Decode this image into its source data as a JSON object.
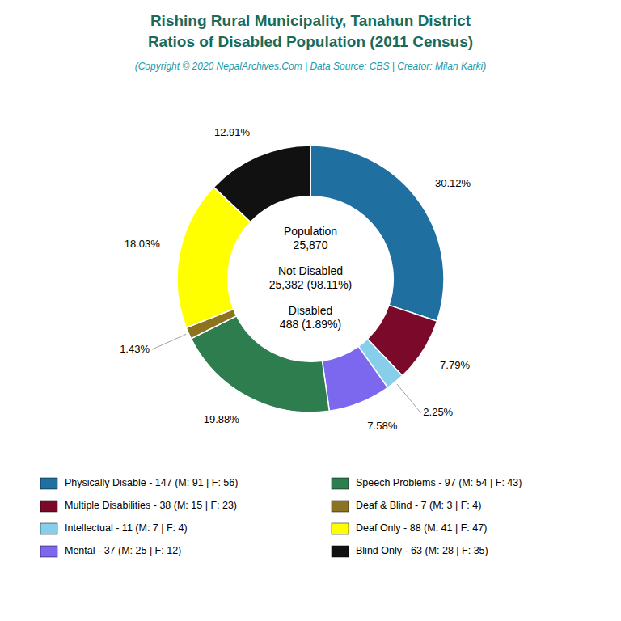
{
  "chart_data": {
    "type": "pie",
    "title": "Rishing Rural Municipality, Tanahun District\nRatios of Disabled Population (2011 Census)",
    "subtitle": "(Copyright © 2020 NepalArchives.Com | Data Source: CBS | Creator: Milan Karki)",
    "categories": [
      "Physically Disable - 147 (M: 91 | F: 56)",
      "Multiple Disabilities - 38 (M: 15 | F: 23)",
      "Intellectual - 11 (M: 7 | F: 4)",
      "Mental - 37 (M: 25 | F: 12)",
      "Speech Problems - 97 (M: 54 | F: 43)",
      "Deaf & Blind - 7 (M: 3 | F: 4)",
      "Deaf Only - 88 (M: 41 | F: 47)",
      "Blind Only - 63 (M: 28 | F: 35)"
    ],
    "values": [
      30.12,
      7.79,
      2.25,
      7.58,
      19.88,
      1.43,
      18.03,
      12.91
    ],
    "value_labels": [
      "30.12%",
      "7.79%",
      "2.25%",
      "7.58%",
      "19.88%",
      "1.43%",
      "18.03%",
      "12.91%"
    ],
    "colors": [
      "#1f6fa0",
      "#7b0a2a",
      "#87ceeb",
      "#7b68ee",
      "#2e7d4f",
      "#8b7320",
      "#ffff00",
      "#111111"
    ],
    "annotations": [
      "Population\n25,870",
      "Not Disabled\n25,382 (98.11%)",
      "Disabled\n488 (1.89%)"
    ],
    "data_labels": true,
    "legend": "bottom"
  }
}
